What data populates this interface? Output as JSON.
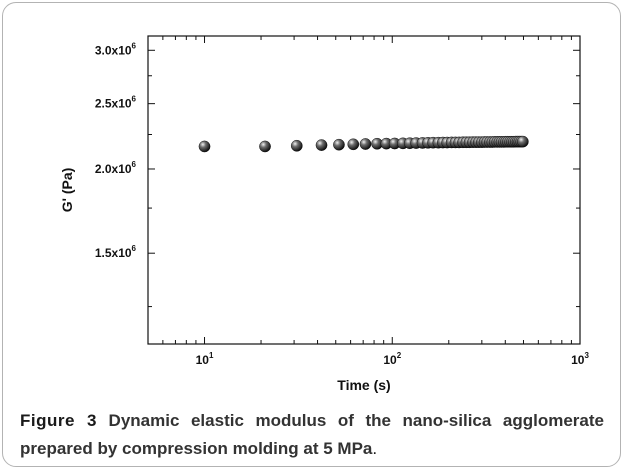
{
  "chart_data": {
    "type": "scatter",
    "title": "",
    "xlabel": "Time (s)",
    "ylabel": "G' (Pa)",
    "xscale": "log",
    "yscale": "log",
    "xlim": [
      5,
      1000
    ],
    "ylim": [
      1100000,
      3150000
    ],
    "grid": false,
    "legend": "none",
    "x_ticks": [
      {
        "value": 10,
        "base": "10",
        "exp": "1"
      },
      {
        "value": 100,
        "base": "10",
        "exp": "2"
      },
      {
        "value": 1000,
        "base": "10",
        "exp": "3"
      }
    ],
    "y_ticks": [
      {
        "value": 1500000,
        "base": "1.5x10",
        "exp": "6"
      },
      {
        "value": 2000000,
        "base": "2.0x10",
        "exp": "6"
      },
      {
        "value": 2500000,
        "base": "2.5x10",
        "exp": "6"
      },
      {
        "value": 3000000,
        "base": "3.0x10",
        "exp": "6"
      }
    ],
    "series": [
      {
        "marker": "sphere",
        "color": "#1a1a1a",
        "x": [
          10,
          21,
          31,
          42,
          52,
          62,
          72,
          83,
          93,
          103,
          114,
          124,
          134,
          145,
          155,
          165,
          176,
          186,
          196,
          207,
          217,
          227,
          238,
          248,
          258,
          269,
          279,
          289,
          300,
          310,
          320,
          331,
          341,
          351,
          362,
          372,
          382,
          393,
          403,
          413,
          424,
          434,
          444,
          455,
          465,
          475,
          486,
          496
        ],
        "y": [
          2160000,
          2160000,
          2165000,
          2170000,
          2173000,
          2176000,
          2178000,
          2180000,
          2181000,
          2182000,
          2183000,
          2184000,
          2185000,
          2186000,
          2187000,
          2188000,
          2188000,
          2189000,
          2189000,
          2190000,
          2190000,
          2190000,
          2191000,
          2191000,
          2191000,
          2192000,
          2192000,
          2192000,
          2192000,
          2193000,
          2193000,
          2193000,
          2193000,
          2194000,
          2194000,
          2194000,
          2194000,
          2194000,
          2195000,
          2195000,
          2195000,
          2195000,
          2195000,
          2196000,
          2196000,
          2196000,
          2196000,
          2196000
        ]
      }
    ]
  },
  "caption": {
    "label": "Figure 3",
    "text": "Dynamic elastic modulus of the nano-silica agglomerate prepared by compression molding at 5 MPa",
    "end": "."
  }
}
